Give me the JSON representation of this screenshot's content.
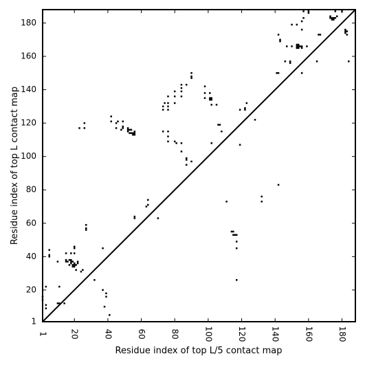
{
  "chart_data": {
    "type": "scatter",
    "title": "",
    "xlabel": "Residue index of top L/5 contact map",
    "ylabel": "Residue index of top L contact map",
    "xlim": [
      1,
      188
    ],
    "ylim": [
      1,
      188
    ],
    "xticks": [
      1,
      20,
      40,
      60,
      80,
      100,
      120,
      140,
      160,
      180
    ],
    "yticks": [
      1,
      20,
      40,
      60,
      80,
      100,
      120,
      140,
      160,
      180
    ],
    "grid": false,
    "legend": "none",
    "marker": "square",
    "colors": {
      "points": "#000000",
      "diagonal": "#000000",
      "axes": "#000000"
    },
    "diagonal": {
      "from": [
        1,
        1
      ],
      "to": [
        188,
        188
      ]
    },
    "points_above_diagonal": [
      [
        1,
        14
      ],
      [
        1,
        16
      ],
      [
        3,
        9
      ],
      [
        3,
        11
      ],
      [
        3,
        22
      ],
      [
        5,
        40
      ],
      [
        5,
        41
      ],
      [
        5,
        44
      ],
      [
        10,
        12
      ],
      [
        10,
        37
      ],
      [
        11,
        12
      ],
      [
        11,
        22
      ],
      [
        14,
        12
      ],
      [
        15,
        37
      ],
      [
        15,
        38
      ],
      [
        15,
        42
      ],
      [
        16,
        37
      ],
      [
        17,
        35
      ],
      [
        17,
        38
      ],
      [
        18,
        36
      ],
      [
        18,
        37
      ],
      [
        18,
        38
      ],
      [
        18,
        42
      ],
      [
        19,
        34
      ],
      [
        19,
        35
      ],
      [
        19,
        37
      ],
      [
        20,
        34
      ],
      [
        20,
        35
      ],
      [
        20,
        36
      ],
      [
        20,
        42
      ],
      [
        20,
        45
      ],
      [
        20,
        46
      ],
      [
        21,
        32
      ],
      [
        21,
        35
      ],
      [
        22,
        36
      ],
      [
        22,
        37
      ],
      [
        24,
        31
      ],
      [
        25,
        32
      ],
      [
        27,
        56
      ],
      [
        27,
        57
      ],
      [
        27,
        59
      ],
      [
        32,
        26
      ],
      [
        37,
        45
      ],
      [
        37,
        20
      ],
      [
        38,
        10
      ],
      [
        39,
        16
      ],
      [
        39,
        18
      ],
      [
        41,
        5
      ],
      [
        23,
        117
      ],
      [
        26,
        117
      ],
      [
        26,
        120
      ],
      [
        42,
        121
      ],
      [
        42,
        124
      ],
      [
        45,
        117
      ],
      [
        45,
        120
      ],
      [
        46,
        121
      ],
      [
        48,
        116
      ],
      [
        49,
        117
      ],
      [
        49,
        118
      ],
      [
        49,
        121
      ],
      [
        52,
        115
      ],
      [
        52,
        116
      ],
      [
        52,
        117
      ],
      [
        53,
        114
      ],
      [
        53,
        116
      ],
      [
        54,
        114
      ],
      [
        54,
        116
      ],
      [
        55,
        113
      ],
      [
        55,
        114
      ],
      [
        56,
        113
      ],
      [
        56,
        114
      ],
      [
        56,
        115
      ],
      [
        56,
        63
      ],
      [
        56,
        64
      ],
      [
        63,
        70
      ],
      [
        64,
        71
      ],
      [
        64,
        74
      ],
      [
        70,
        63
      ],
      [
        73,
        115
      ],
      [
        73,
        128
      ],
      [
        73,
        130
      ],
      [
        74,
        132
      ],
      [
        76,
        109
      ],
      [
        76,
        112
      ],
      [
        76,
        115
      ],
      [
        76,
        128
      ],
      [
        76,
        130
      ],
      [
        76,
        132
      ],
      [
        76,
        136
      ],
      [
        80,
        109
      ],
      [
        80,
        132
      ],
      [
        80,
        136
      ],
      [
        80,
        139
      ],
      [
        81,
        108
      ],
      [
        84,
        103
      ],
      [
        84,
        108
      ],
      [
        84,
        136
      ],
      [
        84,
        139
      ],
      [
        84,
        141
      ],
      [
        84,
        143
      ],
      [
        87,
        95
      ],
      [
        87,
        98
      ],
      [
        87,
        99
      ],
      [
        87,
        143
      ],
      [
        90,
        97
      ],
      [
        90,
        147
      ],
      [
        90,
        148
      ],
      [
        90,
        150
      ],
      [
        98,
        135
      ],
      [
        98,
        138
      ],
      [
        98,
        142
      ],
      [
        101,
        134
      ],
      [
        101,
        135
      ],
      [
        101,
        138
      ],
      [
        102,
        108
      ],
      [
        102,
        131
      ],
      [
        102,
        134
      ],
      [
        102,
        135
      ],
      [
        105,
        131
      ],
      [
        106,
        119
      ],
      [
        107,
        119
      ],
      [
        108,
        115
      ],
      [
        111,
        73
      ],
      [
        114,
        55
      ],
      [
        115,
        55
      ],
      [
        115,
        53
      ],
      [
        116,
        53
      ],
      [
        117,
        26
      ],
      [
        117,
        45
      ],
      [
        117,
        49
      ],
      [
        117,
        53
      ],
      [
        119,
        107
      ],
      [
        119,
        128
      ],
      [
        122,
        128
      ],
      [
        122,
        129
      ],
      [
        123,
        132
      ],
      [
        128,
        122
      ],
      [
        132,
        73
      ],
      [
        132,
        76
      ],
      [
        141,
        150
      ],
      [
        142,
        83
      ],
      [
        142,
        173
      ],
      [
        142,
        150
      ],
      [
        143,
        169
      ],
      [
        143,
        170
      ],
      [
        146,
        157
      ],
      [
        147,
        166
      ],
      [
        149,
        156
      ],
      [
        149,
        157
      ],
      [
        150,
        166
      ],
      [
        150,
        179
      ],
      [
        153,
        165
      ],
      [
        153,
        166
      ],
      [
        153,
        167
      ],
      [
        153,
        179
      ],
      [
        154,
        165
      ],
      [
        154,
        166
      ],
      [
        154,
        167
      ],
      [
        155,
        166
      ],
      [
        156,
        150
      ],
      [
        156,
        165
      ],
      [
        156,
        166
      ],
      [
        156,
        176
      ],
      [
        156,
        181
      ],
      [
        157,
        183
      ],
      [
        157,
        187
      ],
      [
        159,
        166
      ],
      [
        160,
        186
      ],
      [
        160,
        187
      ],
      [
        165,
        157
      ],
      [
        166,
        173
      ],
      [
        167,
        173
      ],
      [
        173,
        183
      ],
      [
        173,
        184
      ],
      [
        174,
        182
      ],
      [
        174,
        183
      ],
      [
        175,
        182
      ],
      [
        175,
        183
      ],
      [
        176,
        183
      ],
      [
        176,
        187
      ],
      [
        177,
        184
      ],
      [
        180,
        187
      ],
      [
        182,
        174
      ],
      [
        182,
        175
      ],
      [
        182,
        176
      ],
      [
        183,
        173
      ],
      [
        183,
        175
      ],
      [
        184,
        157
      ]
    ]
  }
}
